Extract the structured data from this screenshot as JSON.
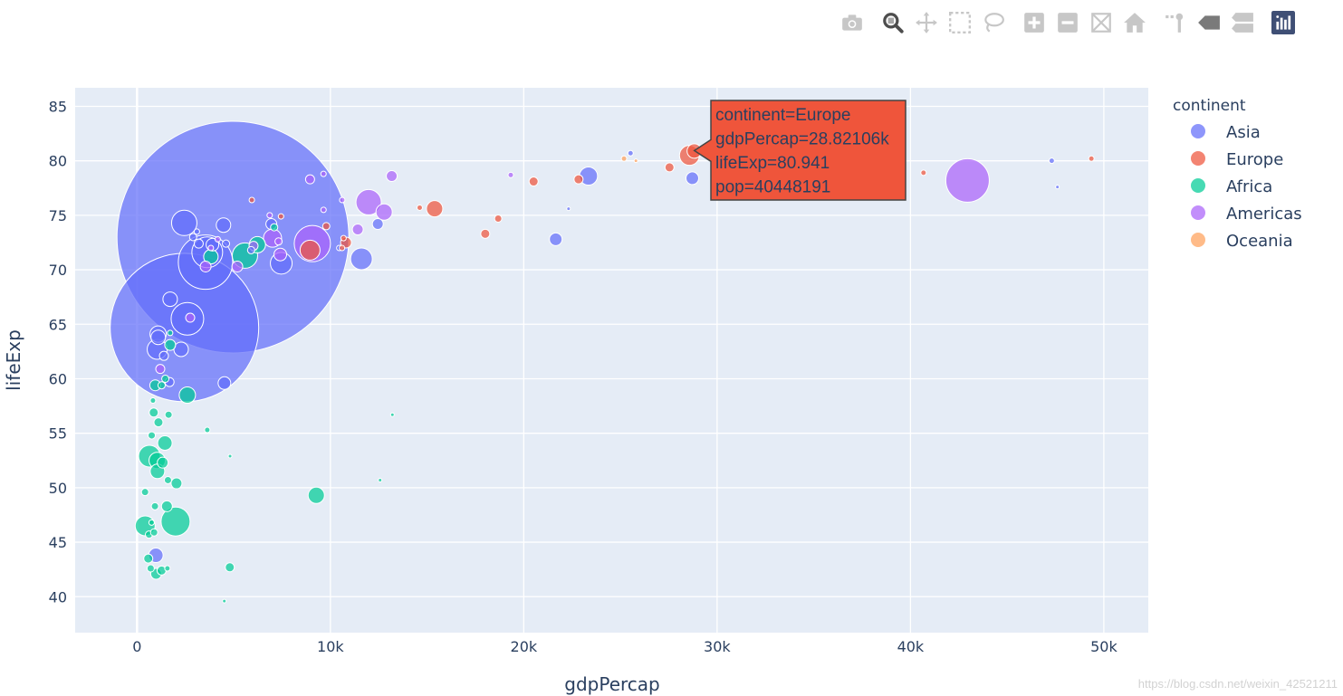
{
  "modebar": {
    "icons": [
      "camera-icon",
      "zoom-icon",
      "pan-icon",
      "box-select-icon",
      "lasso-select-icon",
      "zoom-in-icon",
      "zoom-out-icon",
      "autoscale-icon",
      "reset-axes-icon",
      "spike-lines-icon",
      "hover-closest-icon",
      "hover-compare-icon",
      "plotly-logo-icon"
    ]
  },
  "watermark": "https://blog.csdn.net/weixin_42521211",
  "hover": {
    "lines": [
      "continent=Europe",
      "gdpPercap=28.82106k",
      "lifeExp=80.941",
      "pop=40448191"
    ],
    "x": 28821,
    "y": 80.941,
    "color": "#EF553B"
  },
  "chart_data": {
    "type": "scatter",
    "xlabel": "gdpPercap",
    "ylabel": "lifeExp",
    "xlim": [
      -3200,
      52300
    ],
    "ylim": [
      36.7,
      86.7
    ],
    "xticks": [
      0,
      10000,
      20000,
      30000,
      40000,
      50000
    ],
    "xtick_labels": [
      "0",
      "10k",
      "20k",
      "30k",
      "40k",
      "50k"
    ],
    "yticks": [
      40,
      45,
      50,
      55,
      60,
      65,
      70,
      75,
      80,
      85
    ],
    "ytick_labels": [
      "40",
      "45",
      "50",
      "55",
      "60",
      "65",
      "70",
      "75",
      "80",
      "85"
    ],
    "legend_title": "continent",
    "legend_position": "top-right",
    "grid": true,
    "series": [
      {
        "name": "Asia",
        "color": "#636efa",
        "points": [
          [
            4959,
            73.0,
            128
          ],
          [
            2452,
            64.7,
            82
          ],
          [
            3540,
            70.7,
            30
          ],
          [
            2605,
            65.5,
            18
          ],
          [
            2441,
            74.3,
            14
          ],
          [
            3631,
            71.6,
            17
          ],
          [
            4471,
            74.1,
            8
          ],
          [
            3900,
            72.3,
            7
          ],
          [
            7458,
            70.6,
            12
          ],
          [
            1091,
            64.1,
            9
          ],
          [
            1041,
            62.7,
            11
          ],
          [
            11606,
            71.0,
            12
          ],
          [
            23348,
            78.6,
            10
          ],
          [
            21655,
            72.8,
            7
          ],
          [
            28718,
            78.4,
            7
          ],
          [
            1713,
            67.3,
            8
          ],
          [
            974,
            43.8,
            8
          ],
          [
            2280,
            62.7,
            8
          ],
          [
            4520,
            59.6,
            7
          ],
          [
            3190,
            72.4,
            5
          ],
          [
            6945,
            74.2,
            6
          ],
          [
            12452,
            74.2,
            6
          ],
          [
            1094,
            63.8,
            8
          ],
          [
            1680,
            59.7,
            5
          ],
          [
            2900,
            73.0,
            4
          ],
          [
            4600,
            72.4,
            4
          ],
          [
            10461,
            72.0,
            3
          ],
          [
            25523,
            80.7,
            3
          ],
          [
            47306,
            80.0,
            3
          ],
          [
            47600,
            77.6,
            2
          ],
          [
            22316,
            75.6,
            2
          ],
          [
            1390,
            62.1,
            5
          ],
          [
            3095,
            73.5,
            3
          ],
          [
            5900,
            71.8,
            4
          ]
        ]
      },
      {
        "name": "Europe",
        "color": "#EF553B",
        "points": [
          [
            28821,
            80.9,
            8
          ],
          [
            28570,
            80.5,
            11
          ],
          [
            15390,
            75.6,
            9
          ],
          [
            8948,
            71.8,
            11
          ],
          [
            18009,
            73.3,
            5
          ],
          [
            20510,
            78.1,
            5
          ],
          [
            10808,
            72.5,
            6
          ],
          [
            27538,
            79.4,
            5
          ],
          [
            22833,
            78.3,
            5
          ],
          [
            49357,
            80.2,
            3
          ],
          [
            40675,
            78.9,
            3
          ],
          [
            7446,
            74.9,
            3
          ],
          [
            9786,
            74.0,
            4
          ],
          [
            18678,
            74.7,
            4
          ],
          [
            14619,
            75.7,
            3
          ],
          [
            5937,
            76.4,
            3
          ],
          [
            10680,
            72.9,
            3
          ],
          [
            10600,
            72.0,
            3
          ]
        ]
      },
      {
        "name": "Africa",
        "color": "#00cc96",
        "points": [
          [
            1993,
            46.9,
            16
          ],
          [
            640,
            52.9,
            12
          ],
          [
            420,
            46.5,
            11
          ],
          [
            2602,
            58.5,
            9
          ],
          [
            9270,
            49.3,
            9
          ],
          [
            1042,
            52.5,
            9
          ],
          [
            6223,
            72.3,
            9
          ],
          [
            5581,
            71.3,
            14
          ],
          [
            3820,
            71.2,
            8
          ],
          [
            1441,
            54.1,
            8
          ],
          [
            1056,
            51.5,
            8
          ],
          [
            986,
            42.1,
            6
          ],
          [
            1713,
            63.1,
            6
          ],
          [
            2042,
            50.4,
            6
          ],
          [
            4797,
            42.7,
            5
          ],
          [
            1327,
            52.3,
            6
          ],
          [
            942,
            59.4,
            6
          ],
          [
            1545,
            48.3,
            6
          ],
          [
            580,
            43.5,
            5
          ],
          [
            1107,
            56.0,
            5
          ],
          [
            1631,
            56.7,
            4
          ],
          [
            863,
            56.9,
            5
          ],
          [
            1598,
            50.7,
            4
          ],
          [
            619,
            45.7,
            4
          ],
          [
            926,
            48.3,
            4
          ],
          [
            1271,
            59.4,
            4
          ],
          [
            883,
            45.9,
            4
          ],
          [
            1463,
            60.0,
            4
          ],
          [
            1712,
            64.2,
            3
          ],
          [
            7092,
            73.9,
            4
          ],
          [
            3632,
            55.3,
            3
          ],
          [
            12570,
            50.7,
            2
          ],
          [
            13206,
            56.7,
            2
          ],
          [
            4811,
            52.9,
            2
          ],
          [
            415,
            49.6,
            4
          ],
          [
            706,
            42.6,
            4
          ],
          [
            759,
            54.8,
            4
          ],
          [
            824,
            58.0,
            3
          ],
          [
            752,
            46.8,
            3
          ],
          [
            1270,
            42.4,
            5
          ],
          [
            4513,
            39.6,
            2
          ],
          [
            1570,
            42.6,
            3
          ]
        ]
      },
      {
        "name": "Americas",
        "color": "#ab63fa",
        "points": [
          [
            42952,
            78.2,
            24
          ],
          [
            9066,
            72.4,
            20
          ],
          [
            11977,
            76.2,
            14
          ],
          [
            7007,
            72.9,
            10
          ],
          [
            12779,
            75.3,
            9
          ],
          [
            7409,
            71.4,
            7
          ],
          [
            5186,
            70.3,
            6
          ],
          [
            13172,
            78.6,
            6
          ],
          [
            6025,
            72.2,
            5
          ],
          [
            11416,
            73.7,
            6
          ],
          [
            3548,
            70.3,
            6
          ],
          [
            2749,
            65.6,
            5
          ],
          [
            8948,
            78.3,
            5
          ],
          [
            1202,
            60.9,
            5
          ],
          [
            7320,
            72.6,
            4
          ],
          [
            9646,
            75.5,
            3
          ],
          [
            19328,
            78.7,
            3
          ],
          [
            9644,
            78.8,
            3
          ],
          [
            10611,
            76.4,
            3
          ],
          [
            3820,
            72.0,
            3
          ],
          [
            6860,
            75.0,
            3
          ],
          [
            4173,
            72.8,
            3
          ]
        ]
      },
      {
        "name": "Oceania",
        "color": "#FFA15A",
        "points": [
          [
            25185,
            80.2,
            3
          ],
          [
            34435,
            81.2,
            2
          ],
          [
            25800,
            80.0,
            2
          ]
        ]
      }
    ]
  }
}
